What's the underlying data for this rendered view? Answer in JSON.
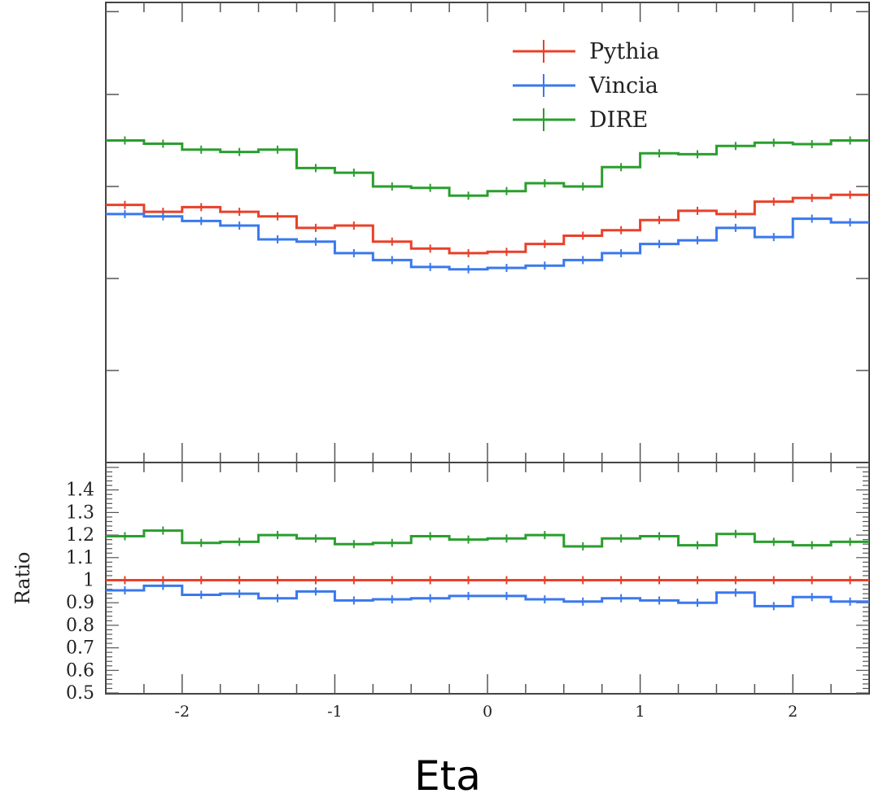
{
  "chart_data": [
    {
      "type": "line",
      "panel": "main",
      "x_bin_edges": [
        -2.5,
        -2.25,
        -2.0,
        -1.75,
        -1.5,
        -1.25,
        -1.0,
        -0.75,
        -0.5,
        -0.25,
        0.0,
        0.25,
        0.5,
        0.75,
        1.0,
        1.25,
        1.5,
        1.75,
        2.0,
        2.25,
        2.5
      ],
      "xlim": [
        -2.5,
        2.5
      ],
      "ylim": [
        0,
        1
      ],
      "y_ticks_labeled": false,
      "grid": false,
      "legend_position": "top-right",
      "legend": [
        "Pythia",
        "Vincia",
        "DIRE"
      ],
      "series": [
        {
          "name": "Pythia",
          "color": "#e8412a",
          "values": [
            0.56,
            0.545,
            0.555,
            0.545,
            0.535,
            0.51,
            0.515,
            0.48,
            0.465,
            0.455,
            0.458,
            0.475,
            0.493,
            0.505,
            0.527,
            0.547,
            0.54,
            0.567,
            0.575,
            0.582
          ]
        },
        {
          "name": "Vincia",
          "color": "#3a78ee",
          "values": [
            0.54,
            0.535,
            0.525,
            0.515,
            0.485,
            0.48,
            0.455,
            0.44,
            0.425,
            0.42,
            0.423,
            0.428,
            0.44,
            0.455,
            0.475,
            0.483,
            0.51,
            0.49,
            0.53,
            0.522
          ]
        },
        {
          "name": "DIRE",
          "color": "#2a9e2e",
          "values": [
            0.7,
            0.693,
            0.68,
            0.675,
            0.68,
            0.64,
            0.63,
            0.6,
            0.597,
            0.58,
            0.59,
            0.607,
            0.6,
            0.642,
            0.672,
            0.67,
            0.688,
            0.695,
            0.692,
            0.7
          ]
        }
      ]
    },
    {
      "type": "line",
      "panel": "ratio",
      "ylabel": "Ratio",
      "xlabel": "Eta",
      "x_bin_edges": [
        -2.5,
        -2.25,
        -2.0,
        -1.75,
        -1.5,
        -1.25,
        -1.0,
        -0.75,
        -0.5,
        -0.25,
        0.0,
        0.25,
        0.5,
        0.75,
        1.0,
        1.25,
        1.5,
        1.75,
        2.0,
        2.25,
        2.5
      ],
      "xlim": [
        -2.5,
        2.5
      ],
      "ylim": [
        0.5,
        1.5
      ],
      "x_ticks": [
        "-2",
        "-1",
        "0",
        "1",
        "2"
      ],
      "y_ticks": [
        "1.4",
        "1.3",
        "1.2",
        "1.1",
        "1",
        "0.9",
        "0.8",
        "0.7",
        "0.6",
        "0.5"
      ],
      "grid": false,
      "series": [
        {
          "name": "Pythia",
          "color": "#e8412a",
          "values": [
            1.0,
            1.0,
            1.0,
            1.0,
            1.0,
            1.0,
            1.0,
            1.0,
            1.0,
            1.0,
            1.0,
            1.0,
            1.0,
            1.0,
            1.0,
            1.0,
            1.0,
            1.0,
            1.0,
            1.0
          ]
        },
        {
          "name": "Vincia",
          "color": "#3a78ee",
          "values": [
            0.955,
            0.975,
            0.935,
            0.94,
            0.92,
            0.95,
            0.91,
            0.915,
            0.92,
            0.93,
            0.93,
            0.915,
            0.905,
            0.92,
            0.91,
            0.9,
            0.945,
            0.885,
            0.925,
            0.905
          ]
        },
        {
          "name": "DIRE",
          "color": "#2a9e2e",
          "values": [
            1.195,
            1.22,
            1.165,
            1.17,
            1.2,
            1.185,
            1.16,
            1.165,
            1.195,
            1.18,
            1.185,
            1.2,
            1.15,
            1.185,
            1.195,
            1.155,
            1.205,
            1.17,
            1.155,
            1.17
          ]
        }
      ]
    }
  ]
}
